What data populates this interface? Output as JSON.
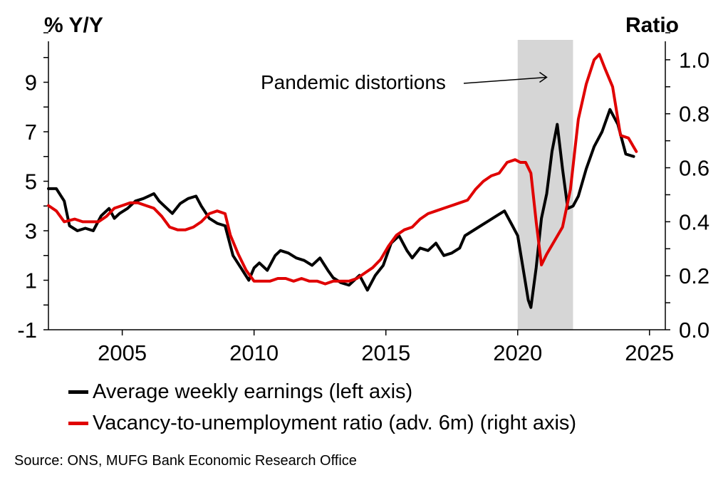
{
  "chart_data": {
    "type": "line",
    "left_axis_title": "% Y/Y",
    "right_axis_title": "Ratio",
    "left_ylim": [
      -1,
      11
    ],
    "left_ticks": [
      -1,
      1,
      3,
      5,
      7,
      9
    ],
    "right_ylim": [
      0.0,
      1.1
    ],
    "right_ticks": [
      "0.0",
      "0.2",
      "0.4",
      "0.6",
      "0.8",
      "1.0"
    ],
    "xlim": [
      2002.2,
      2025.6
    ],
    "x_ticks": [
      2005,
      2010,
      2015,
      2020,
      2025
    ],
    "shaded_region": {
      "x": [
        2020.0,
        2022.1
      ]
    },
    "annotation": {
      "text": "Pandemic distortions",
      "arrow_to": [
        2021.1,
        9.2
      ]
    },
    "series": [
      {
        "name": "Average weekly earnings (left axis)",
        "axis": "left",
        "color": "#000000",
        "x": [
          2002.2,
          2002.5,
          2002.8,
          2003.0,
          2003.3,
          2003.6,
          2003.9,
          2004.2,
          2004.5,
          2004.7,
          2004.9,
          2005.2,
          2005.5,
          2005.8,
          2006.0,
          2006.2,
          2006.4,
          2006.6,
          2006.9,
          2007.2,
          2007.5,
          2007.8,
          2008.0,
          2008.3,
          2008.6,
          2008.9,
          2009.2,
          2009.5,
          2009.8,
          2010.0,
          2010.2,
          2010.5,
          2010.8,
          2011.0,
          2011.3,
          2011.6,
          2011.9,
          2012.2,
          2012.5,
          2012.8,
          2013.0,
          2013.3,
          2013.6,
          2014.0,
          2014.3,
          2014.6,
          2014.9,
          2015.2,
          2015.5,
          2015.8,
          2016.0,
          2016.3,
          2016.6,
          2016.9,
          2017.2,
          2017.5,
          2017.8,
          2018.0,
          2018.3,
          2018.6,
          2018.9,
          2019.2,
          2019.5,
          2019.8,
          2020.0,
          2020.2,
          2020.4,
          2020.5,
          2020.7,
          2020.9,
          2021.1,
          2021.3,
          2021.5,
          2021.7,
          2021.9,
          2022.1,
          2022.3,
          2022.6,
          2022.9,
          2023.2,
          2023.5,
          2023.8,
          2024.1,
          2024.4
        ],
        "values": [
          4.7,
          4.7,
          4.2,
          3.2,
          3.0,
          3.1,
          3.0,
          3.6,
          3.9,
          3.5,
          3.7,
          3.9,
          4.2,
          4.3,
          4.4,
          4.5,
          4.2,
          4.0,
          3.7,
          4.1,
          4.3,
          4.4,
          4.0,
          3.5,
          3.3,
          3.2,
          2.0,
          1.5,
          1.0,
          1.5,
          1.7,
          1.4,
          2.0,
          2.2,
          2.1,
          1.9,
          1.8,
          1.6,
          1.9,
          1.4,
          1.1,
          0.9,
          0.8,
          1.2,
          0.6,
          1.2,
          1.6,
          2.5,
          2.8,
          2.2,
          1.9,
          2.3,
          2.2,
          2.5,
          2.0,
          2.1,
          2.3,
          2.8,
          3.0,
          3.2,
          3.4,
          3.6,
          3.8,
          3.2,
          2.8,
          1.5,
          0.2,
          -0.1,
          1.5,
          3.5,
          4.5,
          6.2,
          7.3,
          5.5,
          3.9,
          4.0,
          4.4,
          5.5,
          6.4,
          7.0,
          7.9,
          7.3,
          6.1,
          6.0
        ]
      },
      {
        "name": "Vacancy-to-unemployment ratio (adv. 6m) (right axis)",
        "axis": "right",
        "color": "#e00000",
        "x": [
          2002.2,
          2002.5,
          2002.8,
          2003.2,
          2003.5,
          2003.8,
          2004.1,
          2004.4,
          2004.7,
          2005.0,
          2005.3,
          2005.6,
          2005.9,
          2006.2,
          2006.5,
          2006.8,
          2007.1,
          2007.4,
          2007.7,
          2008.0,
          2008.3,
          2008.6,
          2008.9,
          2009.1,
          2009.4,
          2009.7,
          2010.0,
          2010.3,
          2010.6,
          2010.9,
          2011.2,
          2011.5,
          2011.8,
          2012.1,
          2012.4,
          2012.7,
          2013.0,
          2013.3,
          2013.6,
          2013.9,
          2014.2,
          2014.5,
          2014.8,
          2015.1,
          2015.4,
          2015.7,
          2016.0,
          2016.3,
          2016.6,
          2016.9,
          2017.2,
          2017.5,
          2017.8,
          2018.1,
          2018.4,
          2018.7,
          2019.0,
          2019.3,
          2019.6,
          2019.9,
          2020.1,
          2020.3,
          2020.5,
          2020.7,
          2020.9,
          2021.1,
          2021.4,
          2021.7,
          2022.0,
          2022.3,
          2022.6,
          2022.9,
          2023.1,
          2023.3,
          2023.6,
          2023.9,
          2024.2,
          2024.5
        ],
        "values": [
          0.46,
          0.44,
          0.4,
          0.41,
          0.4,
          0.4,
          0.4,
          0.42,
          0.45,
          0.46,
          0.47,
          0.47,
          0.46,
          0.45,
          0.42,
          0.38,
          0.37,
          0.37,
          0.38,
          0.4,
          0.43,
          0.44,
          0.43,
          0.35,
          0.28,
          0.22,
          0.18,
          0.18,
          0.18,
          0.19,
          0.19,
          0.18,
          0.19,
          0.18,
          0.18,
          0.17,
          0.18,
          0.18,
          0.18,
          0.19,
          0.21,
          0.23,
          0.26,
          0.31,
          0.35,
          0.37,
          0.38,
          0.41,
          0.43,
          0.44,
          0.45,
          0.46,
          0.47,
          0.48,
          0.52,
          0.55,
          0.57,
          0.58,
          0.62,
          0.63,
          0.62,
          0.62,
          0.58,
          0.4,
          0.24,
          0.28,
          0.33,
          0.38,
          0.52,
          0.78,
          0.91,
          1.0,
          1.02,
          0.97,
          0.9,
          0.72,
          0.71,
          0.66
        ]
      }
    ]
  },
  "source": "Source: ONS, MUFG Bank Economic Research Office"
}
